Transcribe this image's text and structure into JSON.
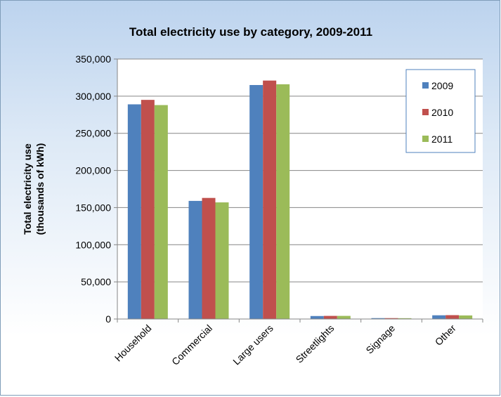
{
  "chart_data": {
    "type": "bar",
    "title": "Total electricity use by category, 2009-2011",
    "ylabel_lines": [
      "Total electricity use",
      "(thousands of kWh)"
    ],
    "xlabel": "",
    "categories": [
      "Household",
      "Commercial",
      "Large users",
      "Streetlights",
      "Signage",
      "Other"
    ],
    "series": [
      {
        "name": "2009",
        "color": "#4f81bd",
        "values": [
          289000,
          159000,
          315000,
          4000,
          1200,
          5000
        ]
      },
      {
        "name": "2010",
        "color": "#c0504d",
        "values": [
          295000,
          163000,
          321000,
          4200,
          1200,
          5200
        ]
      },
      {
        "name": "2011",
        "color": "#9bbb59",
        "values": [
          288000,
          157000,
          316000,
          4200,
          1100,
          4800
        ]
      }
    ],
    "ylim": [
      0,
      350000
    ],
    "yticks": [
      0,
      50000,
      100000,
      150000,
      200000,
      250000,
      300000,
      350000
    ],
    "ytick_labels": [
      "0",
      "50,000",
      "100,000",
      "150,000",
      "200,000",
      "250,000",
      "300,000",
      "350,000"
    ],
    "grid": true,
    "legend_position": "top-right"
  }
}
